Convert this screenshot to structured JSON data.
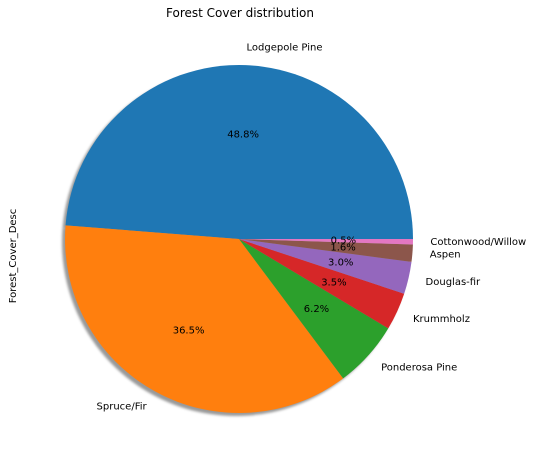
{
  "chart_data": {
    "type": "pie",
    "title": "Forest Cover distribution",
    "ylabel": "Forest_Cover_Desc",
    "shadow": true,
    "start_angle_deg": 0,
    "direction": "counterclockwise",
    "slices": [
      {
        "label": "Lodgepole Pine",
        "value": 48.8,
        "pct_text": "48.8%",
        "color": "#1f77b4"
      },
      {
        "label": "Spruce/Fir",
        "value": 36.5,
        "pct_text": "36.5%",
        "color": "#ff7f0e"
      },
      {
        "label": "Ponderosa Pine",
        "value": 6.2,
        "pct_text": "6.2%",
        "color": "#2ca02c"
      },
      {
        "label": "Krummholz",
        "value": 3.5,
        "pct_text": "3.5%",
        "color": "#d62728"
      },
      {
        "label": "Douglas-fir",
        "value": 3.0,
        "pct_text": "3.0%",
        "color": "#9467bd"
      },
      {
        "label": "Aspen",
        "value": 1.6,
        "pct_text": "1.6%",
        "color": "#8c564b"
      },
      {
        "label": "Cottonwood/Willow",
        "value": 0.5,
        "pct_text": "0.5%",
        "color": "#e377c2"
      }
    ]
  }
}
